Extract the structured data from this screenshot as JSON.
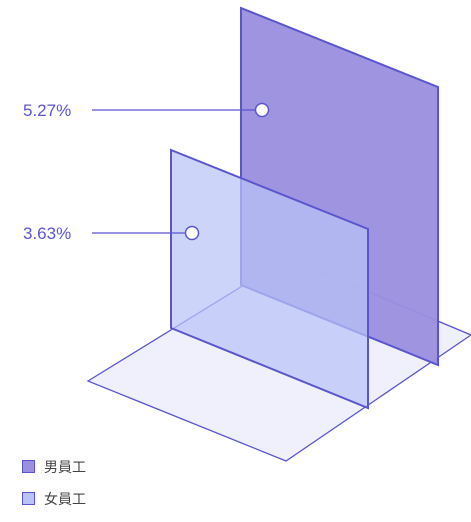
{
  "chart_data": {
    "type": "area",
    "title": "",
    "series": [
      {
        "name": "男員工",
        "value": 5.27,
        "label": "5.27%",
        "color": "#9a90df"
      },
      {
        "name": "女員工",
        "value": 3.63,
        "label": "3.63%",
        "color": "#b9c3f6"
      }
    ],
    "unit": "%",
    "legend_position": "bottom-left",
    "colors": {
      "stroke": "#5a55cf",
      "label": "#5a55cf",
      "floor": "#f0f0fd"
    }
  }
}
